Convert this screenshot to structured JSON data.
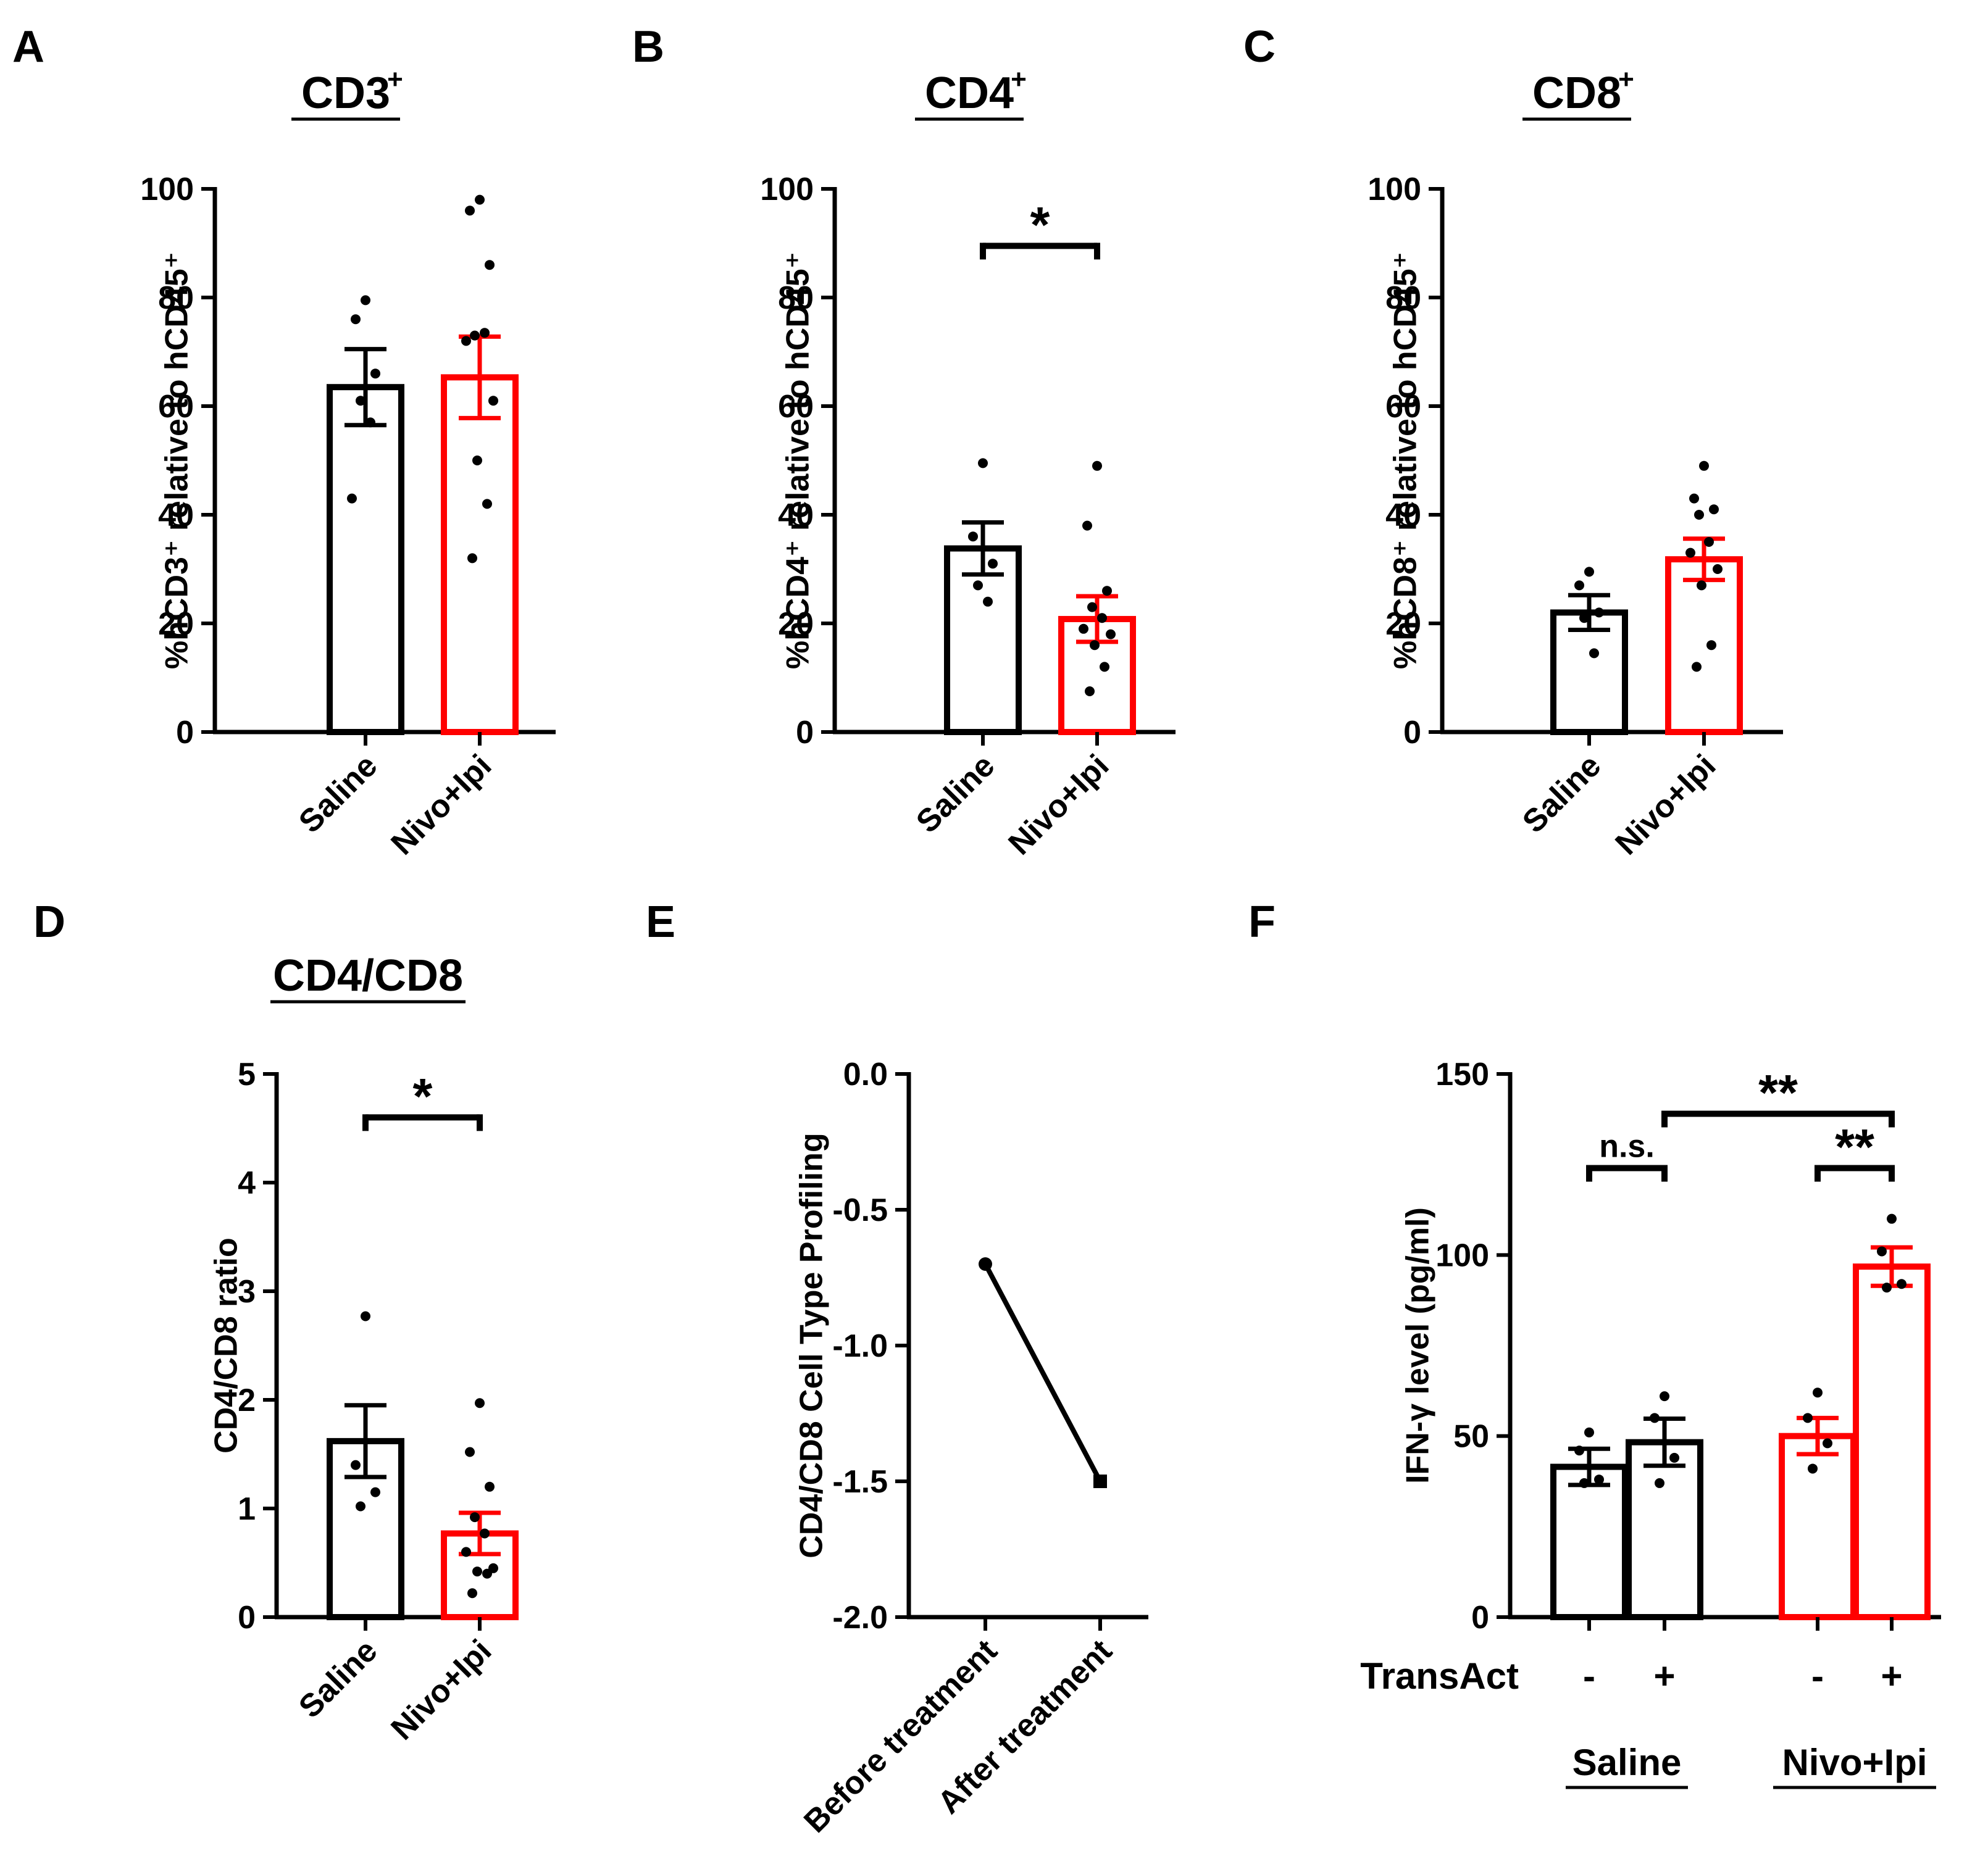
{
  "colors": {
    "black": "#000000",
    "red": "#ff0000"
  },
  "chart_data": [
    {
      "id": "A",
      "type": "bar",
      "panel_label": "A",
      "title": "CD3",
      "title_sup": "+",
      "ylabel": "%hCD3⁺ relative to hCD45⁺",
      "ylim": [
        0,
        100
      ],
      "yticks": [
        "0",
        "20",
        "40",
        "60",
        "80",
        "100"
      ],
      "categories": [
        "Saline",
        "Nivo+Ipi"
      ],
      "bars": [
        {
          "name": "Saline",
          "value": 63.5,
          "sem": 7,
          "color": "#000000",
          "points": [
            79.5,
            76,
            66,
            61,
            57,
            43
          ]
        },
        {
          "name": "Nivo+Ipi",
          "value": 65.3,
          "sem": 7.5,
          "color": "#ff0000",
          "points": [
            98,
            96,
            86,
            73,
            73.5,
            72,
            61,
            50,
            42,
            32
          ]
        }
      ],
      "significance": []
    },
    {
      "id": "B",
      "type": "bar",
      "panel_label": "B",
      "title": "CD4",
      "title_sup": "+",
      "ylabel": "%hCD4⁺ relative to hCD45⁺",
      "ylim": [
        0,
        100
      ],
      "yticks": [
        "0",
        "20",
        "40",
        "60",
        "80",
        "100"
      ],
      "categories": [
        "Saline",
        "Nivo+Ipi"
      ],
      "bars": [
        {
          "name": "Saline",
          "value": 33.8,
          "sem": 4.8,
          "color": "#000000",
          "points": [
            49.5,
            36,
            31,
            27,
            24
          ]
        },
        {
          "name": "Nivo+Ipi",
          "value": 20.8,
          "sem": 4.2,
          "color": "#ff0000",
          "points": [
            49,
            38,
            26,
            23,
            21,
            19,
            18,
            16,
            12,
            7.5
          ]
        }
      ],
      "significance": [
        {
          "from": 0,
          "to": 1,
          "y": 89.5,
          "label": "*"
        }
      ]
    },
    {
      "id": "C",
      "type": "bar",
      "panel_label": "C",
      "title": "CD8",
      "title_sup": "+",
      "ylabel": "%hCD8⁺ relative to hCD45⁺",
      "ylim": [
        0,
        100
      ],
      "yticks": [
        "0",
        "20",
        "40",
        "60",
        "80",
        "100"
      ],
      "categories": [
        "Saline",
        "Nivo+Ipi"
      ],
      "bars": [
        {
          "name": "Saline",
          "value": 22,
          "sem": 3.2,
          "color": "#000000",
          "points": [
            29.5,
            27,
            22,
            21,
            14.5
          ]
        },
        {
          "name": "Nivo+Ipi",
          "value": 31.8,
          "sem": 3.8,
          "color": "#ff0000",
          "points": [
            49,
            43,
            41,
            40,
            35,
            33,
            30,
            27,
            16,
            12
          ]
        }
      ],
      "significance": []
    },
    {
      "id": "D",
      "type": "bar",
      "panel_label": "D",
      "title": "CD4/CD8",
      "title_sup": "",
      "ylabel": "CD4/CD8 ratio",
      "ylim": [
        0,
        5
      ],
      "yticks": [
        "0",
        "1",
        "2",
        "3",
        "4",
        "5"
      ],
      "categories": [
        "Saline",
        "Nivo+Ipi"
      ],
      "bars": [
        {
          "name": "Saline",
          "value": 1.62,
          "sem": 0.33,
          "color": "#000000",
          "points": [
            2.77,
            1.4,
            1.15,
            1.02
          ]
        },
        {
          "name": "Nivo+Ipi",
          "value": 0.77,
          "sem": 0.19,
          "color": "#ff0000",
          "points": [
            1.97,
            1.52,
            1.2,
            0.92,
            0.77,
            0.6,
            0.45,
            0.42,
            0.4,
            0.22
          ]
        }
      ],
      "significance": [
        {
          "from": 0,
          "to": 1,
          "y": 4.6,
          "label": "*"
        }
      ]
    },
    {
      "id": "E",
      "type": "line",
      "panel_label": "E",
      "title": "",
      "ylabel": "CD4/CD8 Cell Type Profiling",
      "ylim": [
        -2.0,
        0.0
      ],
      "yticks": [
        "0.0",
        "-0.5",
        "-1.0",
        "-1.5",
        "-2.0"
      ],
      "categories": [
        "Before treatment",
        "After treatment"
      ],
      "values": [
        -0.7,
        -1.5
      ]
    },
    {
      "id": "F",
      "type": "bar",
      "panel_label": "F",
      "title": "",
      "ylabel": "IFN-γ level (pg/ml)",
      "ylim": [
        0,
        150
      ],
      "yticks": [
        "0",
        "50",
        "100",
        "150"
      ],
      "row_label": "TransAct",
      "transact": [
        "-",
        "+",
        "-",
        "+"
      ],
      "groups": [
        {
          "name": "Saline",
          "color": "#000000"
        },
        {
          "name": "Nivo+Ipi",
          "color": "#ff0000"
        }
      ],
      "bars": [
        {
          "group": "Saline",
          "transact": "-",
          "value": 41.5,
          "sem": 5,
          "color": "#000000",
          "points": [
            51,
            46,
            38,
            37
          ]
        },
        {
          "group": "Saline",
          "transact": "+",
          "value": 48.3,
          "sem": 6.5,
          "color": "#000000",
          "points": [
            61,
            55,
            44,
            37
          ]
        },
        {
          "group": "Nivo+Ipi",
          "transact": "-",
          "value": 50,
          "sem": 5,
          "color": "#ff0000",
          "points": [
            62,
            55,
            48,
            41
          ]
        },
        {
          "group": "Nivo+Ipi",
          "transact": "+",
          "value": 96.8,
          "sem": 5.3,
          "color": "#ff0000",
          "points": [
            110,
            101,
            92,
            91
          ]
        }
      ],
      "significance": [
        {
          "from": 0,
          "to": 1,
          "y": 124,
          "label": "n.s."
        },
        {
          "from": 2,
          "to": 3,
          "y": 124,
          "label": "**"
        },
        {
          "from": 1,
          "to": 3,
          "y": 139,
          "label": "**"
        }
      ]
    }
  ]
}
